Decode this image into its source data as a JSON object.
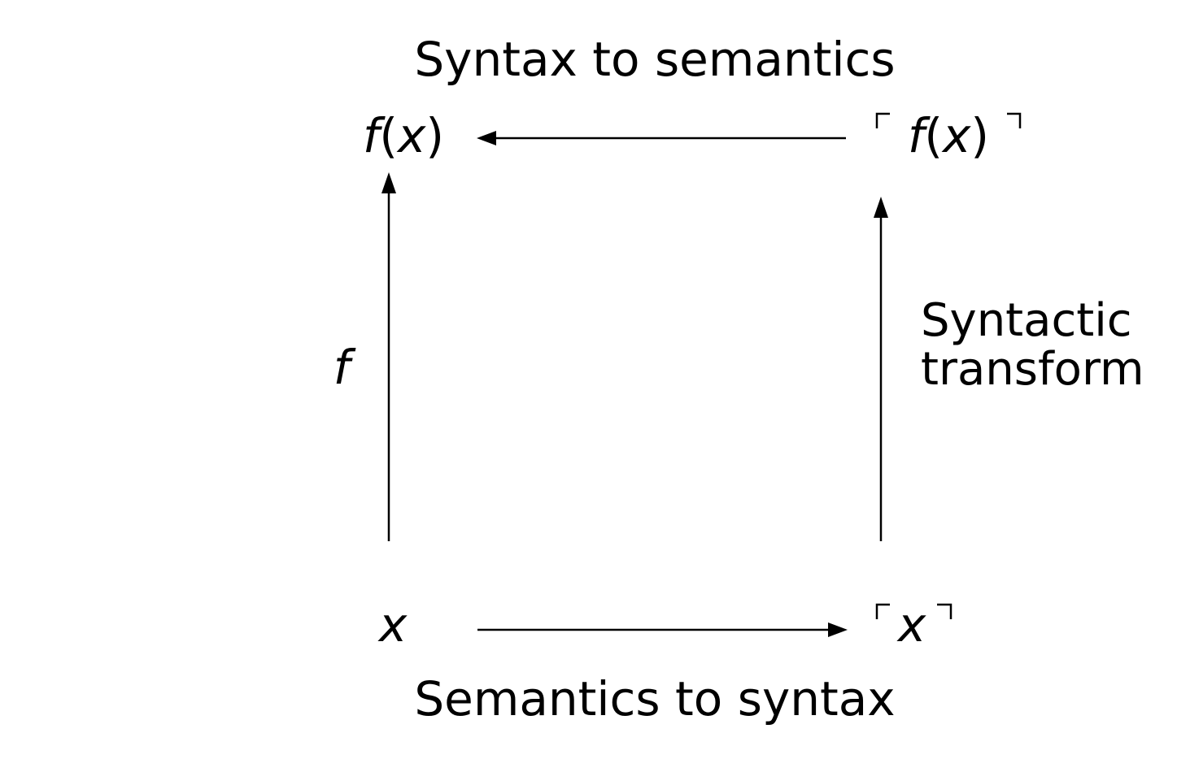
{
  "top_label": "Syntax to semantics",
  "bottom_label": "Semantics to syntax",
  "right_label_line1": "Syntactic",
  "right_label_line2": "transform",
  "left_label": "f",
  "nodes": {
    "top_left": {
      "fn": "f",
      "open": "(",
      "arg": "x",
      "close": ")"
    },
    "top_right": {
      "fn": "f",
      "open": "(",
      "arg": "x",
      "close": ")"
    },
    "bottom_left": {
      "arg": "x"
    },
    "bottom_right": {
      "arg": "x"
    }
  }
}
